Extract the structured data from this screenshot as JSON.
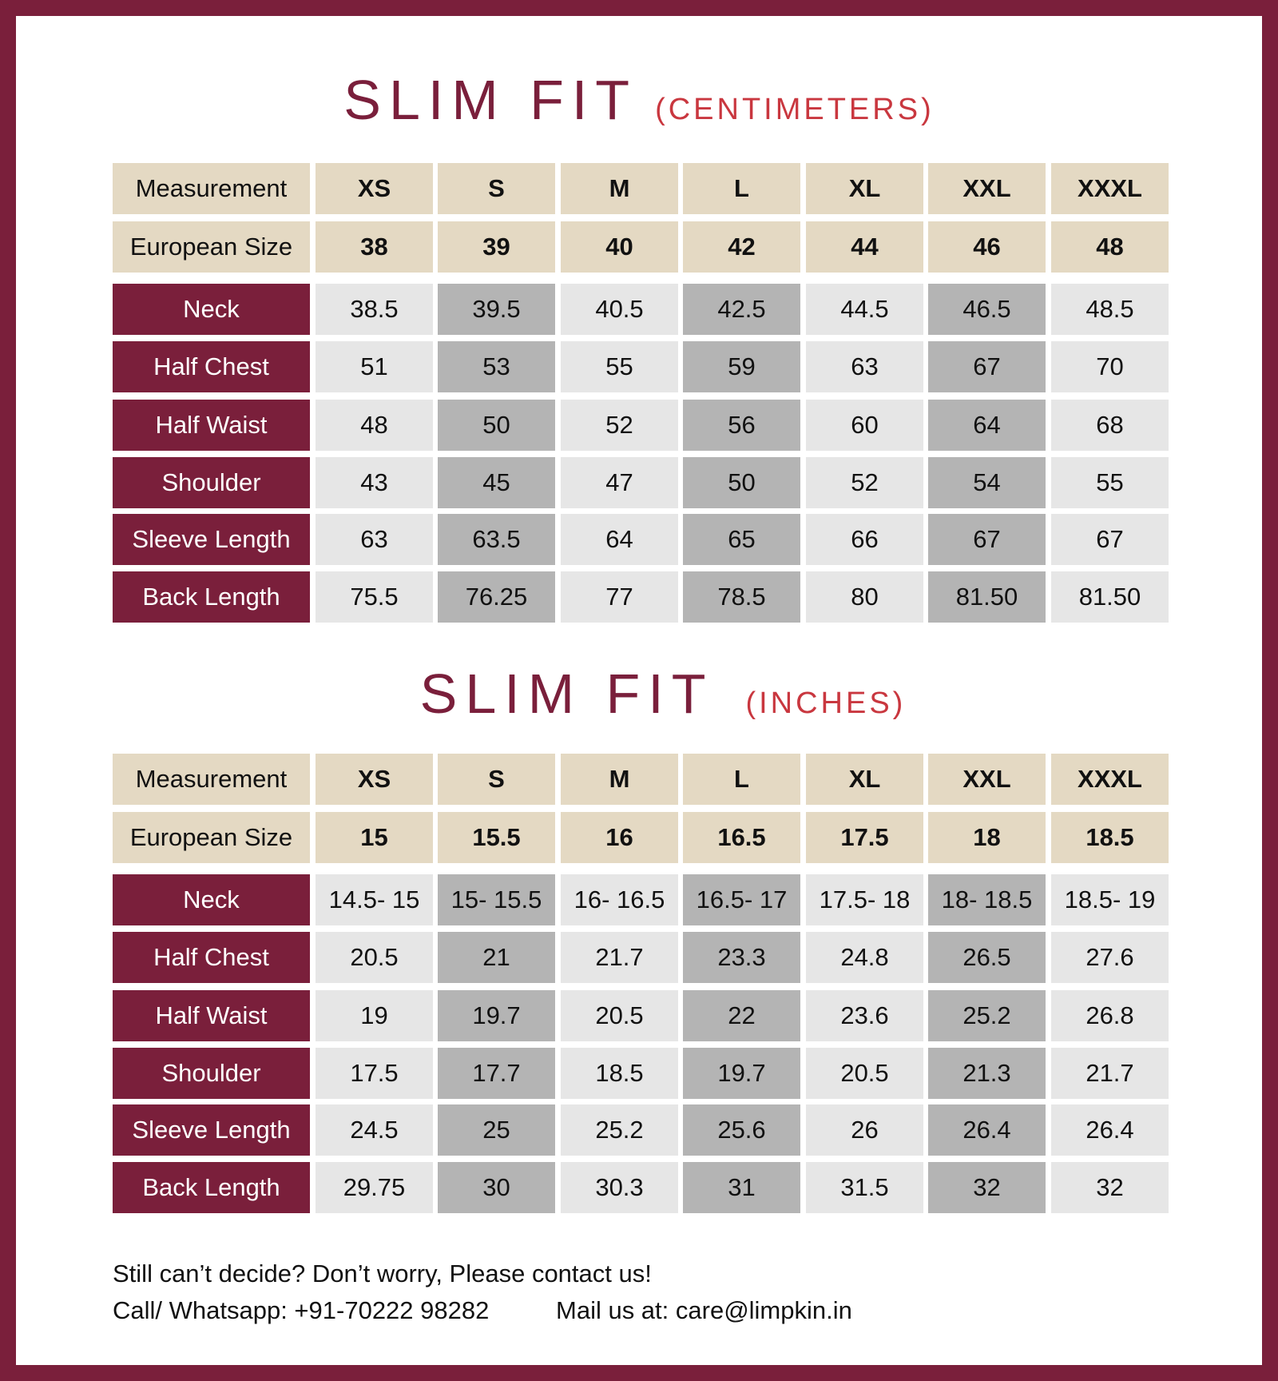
{
  "colors": {
    "border": "#7a1f3b",
    "title": "#7a1f3b",
    "subtitle": "#c9373f",
    "header_bg": "#e4d9c3",
    "light_cell": "#e6e6e6",
    "dark_cell": "#b4b4b4"
  },
  "tables": [
    {
      "title": "SLIM FIT",
      "unit": "(CENTIMETERS)",
      "header_label": "Measurement",
      "sizes": [
        "XS",
        "S",
        "M",
        "L",
        "XL",
        "XXL",
        "XXXL"
      ],
      "european_label": "European Size",
      "european": [
        "38",
        "39",
        "40",
        "42",
        "44",
        "46",
        "48"
      ],
      "rows": [
        {
          "label": "Neck",
          "values": [
            "38.5",
            "39.5",
            "40.5",
            "42.5",
            "44.5",
            "46.5",
            "48.5"
          ]
        },
        {
          "label": "Half Chest",
          "values": [
            "51",
            "53",
            "55",
            "59",
            "63",
            "67",
            "70"
          ]
        },
        {
          "label": "Half Waist",
          "values": [
            "48",
            "50",
            "52",
            "56",
            "60",
            "64",
            "68"
          ]
        },
        {
          "label": "Shoulder",
          "values": [
            "43",
            "45",
            "47",
            "50",
            "52",
            "54",
            "55"
          ]
        },
        {
          "label": "Sleeve Length",
          "values": [
            "63",
            "63.5",
            "64",
            "65",
            "66",
            "67",
            "67"
          ]
        },
        {
          "label": "Back Length",
          "values": [
            "75.5",
            "76.25",
            "77",
            "78.5",
            "80",
            "81.50",
            "81.50"
          ]
        }
      ]
    },
    {
      "title": "SLIM FIT",
      "unit": "(INCHES)",
      "header_label": "Measurement",
      "sizes": [
        "XS",
        "S",
        "M",
        "L",
        "XL",
        "XXL",
        "XXXL"
      ],
      "european_label": "European Size",
      "european": [
        "15",
        "15.5",
        "16",
        "16.5",
        "17.5",
        "18",
        "18.5"
      ],
      "rows": [
        {
          "label": "Neck",
          "values": [
            "14.5- 15",
            "15- 15.5",
            "16- 16.5",
            "16.5- 17",
            "17.5- 18",
            "18- 18.5",
            "18.5- 19"
          ]
        },
        {
          "label": "Half Chest",
          "values": [
            "20.5",
            "21",
            "21.7",
            "23.3",
            "24.8",
            "26.5",
            "27.6"
          ]
        },
        {
          "label": "Half Waist",
          "values": [
            "19",
            "19.7",
            "20.5",
            "22",
            "23.6",
            "25.2",
            "26.8"
          ]
        },
        {
          "label": "Shoulder",
          "values": [
            "17.5",
            "17.7",
            "18.5",
            "19.7",
            "20.5",
            "21.3",
            "21.7"
          ]
        },
        {
          "label": "Sleeve Length",
          "values": [
            "24.5",
            "25",
            "25.2",
            "25.6",
            "26",
            "26.4",
            "26.4"
          ]
        },
        {
          "label": "Back Length",
          "values": [
            "29.75",
            "30",
            "30.3",
            "31",
            "31.5",
            "32",
            "32"
          ]
        }
      ]
    }
  ],
  "footer": {
    "line1": "Still can’t decide? Don’t worry, Please contact us!",
    "phone": "Call/ Whatsapp: +91-70222 98282",
    "mail": "Mail us at: care@limpkin.in"
  }
}
